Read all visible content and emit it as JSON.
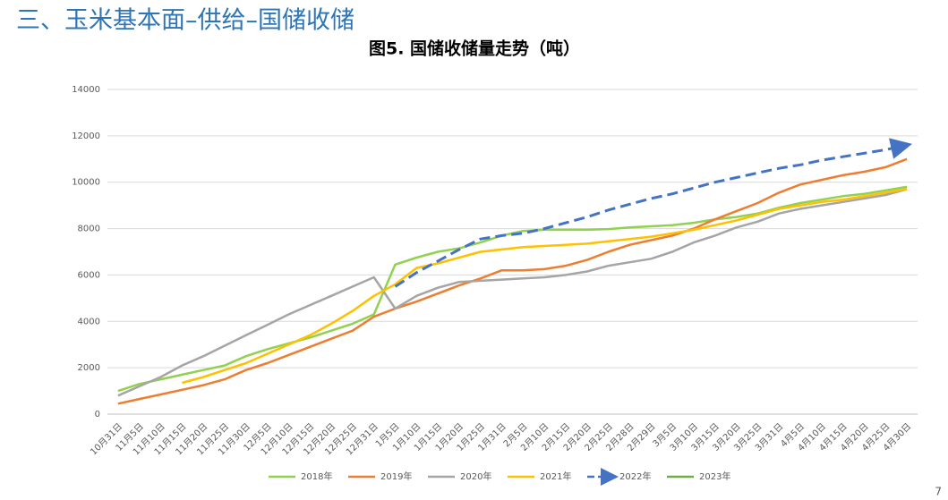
{
  "slide": {
    "heading": "三、玉米基本面–供给–国储收储",
    "page_number": "7"
  },
  "chart_data": {
    "type": "line",
    "title": "图5. 国储收储量走势（吨）",
    "categories": [
      "10月31日",
      "11月5日",
      "11月10日",
      "11月15日",
      "11月20日",
      "11月25日",
      "11月30日",
      "12月5日",
      "12月10日",
      "12月15日",
      "12月20日",
      "12月25日",
      "12月31日",
      "1月5日",
      "1月10日",
      "1月15日",
      "1月20日",
      "1月25日",
      "1月31日",
      "2月5日",
      "2月10日",
      "2月15日",
      "2月20日",
      "2月25日",
      "2月28日",
      "2月29日",
      "3月5日",
      "3月10日",
      "3月15日",
      "3月20日",
      "3月25日",
      "3月31日",
      "4月5日",
      "4月10日",
      "4月15日",
      "4月20日",
      "4月25日",
      "4月30日"
    ],
    "ylim": [
      0,
      14000
    ],
    "yticks": [
      0,
      2000,
      4000,
      6000,
      8000,
      10000,
      12000,
      14000
    ],
    "grid": true,
    "legend": "bottom",
    "series": [
      {
        "name": "2018年",
        "color": "#92d050",
        "values": [
          1000,
          1300,
          1500,
          1700,
          1900,
          2100,
          2500,
          2800,
          3050,
          3300,
          3600,
          3900,
          4300,
          6450,
          6750,
          7000,
          7150,
          7400,
          7700,
          7900,
          7950,
          7950,
          7950,
          7980,
          8050,
          8100,
          8150,
          8250,
          8400,
          8500,
          8650,
          8900,
          9100,
          9250,
          9400,
          9500,
          9650,
          9800
        ]
      },
      {
        "name": "2019年",
        "color": "#ed7d31",
        "values": [
          450,
          650,
          850,
          1050,
          1250,
          1500,
          1900,
          2200,
          2550,
          2900,
          3250,
          3600,
          4200,
          4550,
          4850,
          5200,
          5550,
          5850,
          6200,
          6200,
          6250,
          6400,
          6650,
          7000,
          7300,
          7500,
          7700,
          8000,
          8400,
          8750,
          9100,
          9550,
          9900,
          10100,
          10300,
          10450,
          10650,
          11000
        ]
      },
      {
        "name": "2020年",
        "color": "#a5a5a5",
        "values": [
          800,
          1200,
          1600,
          2100,
          2500,
          2950,
          3400,
          3850,
          4300,
          4700,
          5100,
          5500,
          5900,
          4550,
          5100,
          5450,
          5700,
          5750,
          5800,
          5850,
          5900,
          6000,
          6150,
          6400,
          6550,
          6700,
          7000,
          7400,
          7700,
          8050,
          8300,
          8650,
          8850,
          9000,
          9150,
          9300,
          9450,
          9700
        ]
      },
      {
        "name": "2021年",
        "color": "#ffc000",
        "values": [
          null,
          null,
          null,
          1350,
          1600,
          1900,
          2200,
          2600,
          3000,
          3400,
          3900,
          4450,
          5100,
          5600,
          6300,
          6500,
          6750,
          7000,
          7100,
          7200,
          7250,
          7300,
          7350,
          7450,
          7550,
          7650,
          7800,
          7950,
          8150,
          8350,
          8600,
          8850,
          9000,
          9150,
          9250,
          9400,
          9550,
          9700
        ]
      },
      {
        "name": "2022年",
        "color": "#4472c4",
        "dashed": true,
        "arrow": true,
        "values": [
          null,
          null,
          null,
          null,
          null,
          null,
          null,
          null,
          null,
          null,
          null,
          null,
          null,
          5500,
          6100,
          6600,
          7100,
          7550,
          7700,
          7800,
          8000,
          8250,
          8500,
          8800,
          9050,
          9300,
          9500,
          9750,
          10000,
          10200,
          10400,
          10600,
          10750,
          10950,
          11100,
          11250,
          11400,
          11600
        ]
      },
      {
        "name": "2023年",
        "color": "#70ad47",
        "values": [
          null,
          null,
          null,
          null,
          null,
          null,
          null,
          null,
          null,
          null,
          null,
          null,
          null,
          null,
          null,
          null,
          null,
          null,
          null,
          null,
          null,
          null,
          null,
          null,
          null,
          null,
          null,
          null,
          null,
          null,
          null,
          null,
          null,
          null,
          null,
          null,
          null,
          null
        ]
      }
    ]
  }
}
